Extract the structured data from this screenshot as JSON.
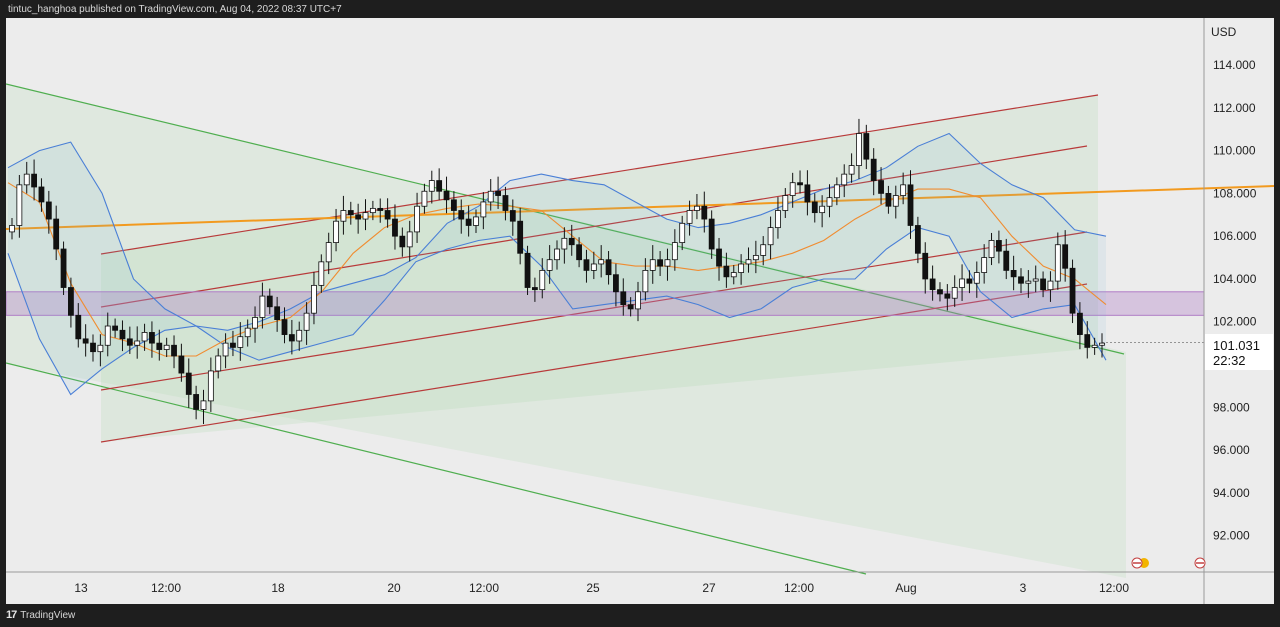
{
  "header": {
    "text": "tintuc_hanghoa published on TradingView.com, Aug 04, 2022 08:37 UTC+7"
  },
  "footer": {
    "logo": "17",
    "brand": "TradingView"
  },
  "chart_data": {
    "type": "candlestick",
    "currency_label": "USD",
    "y_axis": {
      "ticks": [
        "114.000",
        "112.000",
        "110.000",
        "108.000",
        "106.000",
        "104.000",
        "102.000",
        "100.000",
        "98.000",
        "96.000",
        "94.000",
        "92.000"
      ],
      "min": 90.3,
      "max": 116.2
    },
    "x_axis": {
      "ticks": [
        "13",
        "12:00",
        "18",
        "20",
        "12:00",
        "25",
        "27",
        "12:00",
        "Aug",
        "3",
        "12:00"
      ]
    },
    "last_price": {
      "value": "101.031",
      "countdown": "22:32",
      "color": "#ffffff"
    },
    "zone": {
      "from": 102.3,
      "to": 103.4,
      "color": "#b07cc6"
    },
    "colors": {
      "bg": "#ececec",
      "candle": "#111111",
      "ma": "#f08c30",
      "bb": "#4a7fd6",
      "channel_red": "#b83a3a",
      "channel_green": "#4fae4f",
      "trend_orange": "#f29a1f",
      "fill_green": "#a8d8a8"
    },
    "candles_close": [
      106.5,
      108.4,
      108.9,
      108.3,
      107.6,
      106.8,
      105.4,
      103.6,
      102.3,
      101.2,
      101.0,
      100.6,
      100.9,
      101.8,
      101.6,
      101.2,
      100.9,
      101.1,
      101.5,
      101.0,
      100.7,
      100.9,
      100.4,
      99.6,
      98.6,
      97.9,
      98.3,
      99.7,
      100.4,
      101.0,
      100.8,
      101.3,
      101.7,
      102.2,
      103.2,
      102.7,
      102.1,
      101.4,
      101.1,
      101.6,
      102.4,
      103.7,
      104.8,
      105.7,
      106.7,
      107.2,
      107.0,
      106.8,
      107.1,
      107.3,
      107.2,
      106.8,
      106.0,
      105.5,
      106.2,
      107.4,
      108.1,
      108.6,
      108.1,
      107.7,
      107.2,
      106.8,
      106.5,
      106.9,
      107.6,
      108.1,
      107.9,
      107.2,
      106.7,
      105.2,
      103.6,
      103.5,
      104.4,
      104.9,
      105.4,
      105.9,
      105.6,
      104.9,
      104.4,
      104.7,
      104.9,
      104.2,
      103.4,
      102.8,
      102.6,
      103.4,
      104.4,
      104.9,
      104.6,
      104.9,
      105.7,
      106.6,
      107.2,
      107.4,
      106.8,
      105.4,
      104.6,
      104.1,
      104.3,
      104.7,
      104.9,
      105.1,
      105.6,
      106.4,
      107.2,
      107.9,
      108.5,
      108.4,
      107.6,
      107.1,
      107.4,
      107.8,
      108.4,
      108.9,
      109.3,
      110.8,
      109.6,
      108.6,
      108.0,
      107.4,
      107.9,
      108.4,
      106.5,
      105.2,
      104.0,
      103.5,
      103.3,
      103.1,
      103.6,
      104.0,
      103.8,
      104.3,
      105.0,
      105.8,
      105.3,
      104.4,
      104.1,
      103.8,
      103.9,
      104.0,
      103.5,
      103.9,
      105.6,
      104.5,
      102.4,
      101.4,
      100.8,
      100.9,
      101.0
    ],
    "bb_upper_samples": [
      109.2,
      110.0,
      110.4,
      108.0,
      104.0,
      102.6,
      101.8,
      101.6,
      102.0,
      102.6,
      103.4,
      103.8,
      104.2,
      105.0,
      106.6,
      107.4,
      108.6,
      108.9,
      108.6,
      108.4,
      107.6,
      106.8,
      106.4,
      106.6,
      107.0,
      107.6,
      108.2,
      108.6,
      109.2,
      110.2,
      110.8,
      109.4,
      108.4,
      107.8,
      106.3,
      106.0
    ],
    "bb_lower_samples": [
      105.2,
      101.2,
      98.6,
      99.8,
      100.8,
      101.6,
      101.8,
      100.8,
      100.2,
      100.6,
      101.0,
      101.4,
      103.0,
      104.8,
      105.4,
      105.8,
      106.0,
      104.6,
      102.6,
      102.8,
      103.0,
      103.2,
      102.8,
      102.2,
      102.6,
      103.6,
      104.0,
      104.0,
      105.4,
      106.4,
      106.0,
      103.4,
      102.2,
      102.6,
      102.8,
      100.2
    ],
    "ma_samples": [
      108.5,
      107.6,
      103.8,
      101.4,
      101.0,
      100.4,
      100.4,
      101.2,
      101.8,
      102.2,
      103.4,
      105.2,
      106.4,
      107.0,
      107.3,
      107.5,
      107.4,
      107.2,
      106.0,
      104.8,
      104.6,
      104.6,
      104.4,
      104.6,
      104.8,
      105.2,
      105.8,
      106.8,
      107.6,
      108.2,
      108.2,
      107.8,
      106.0,
      104.6,
      104.0,
      102.8
    ]
  }
}
